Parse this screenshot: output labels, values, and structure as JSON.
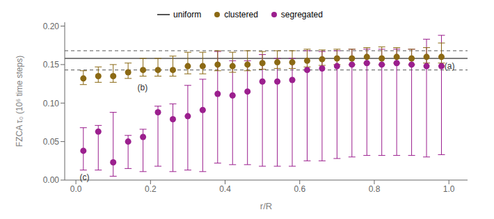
{
  "chart_data": {
    "type": "scatter",
    "xlabel": "r/R",
    "ylabel": "FZCA τ₀ (10⁶ time steps)",
    "xlim": [
      -0.03,
      1.05
    ],
    "ylim": [
      0,
      0.205
    ],
    "xticks": [
      {
        "value": 0,
        "label": "0.0"
      },
      0.2,
      0.4,
      0.6,
      0.8,
      {
        "value": 1.0,
        "label": "1.0"
      }
    ],
    "yticks": [
      {
        "value": 0,
        "label": "0.00"
      },
      0.05,
      {
        "value": 0.1,
        "label": "0.10"
      },
      0.15,
      {
        "value": 0.2,
        "label": "0.20"
      }
    ],
    "grid": false,
    "legend": "top",
    "reference_lines": [
      {
        "name": "uniform",
        "y": 0.158,
        "color": "#555555",
        "line_style": "solid"
      },
      {
        "y": 0.168,
        "color": "#555555",
        "line_style": "dashed"
      },
      {
        "y": 0.143,
        "color": "#555555",
        "line_style": "dashed"
      }
    ],
    "x": [
      0.02,
      0.06,
      0.1,
      0.14,
      0.18,
      0.22,
      0.26,
      0.3,
      0.34,
      0.38,
      0.42,
      0.46,
      0.5,
      0.54,
      0.58,
      0.62,
      0.66,
      0.7,
      0.74,
      0.78,
      0.82,
      0.86,
      0.9,
      0.94,
      0.98
    ],
    "series": [
      {
        "name": "clustered",
        "color": "#8B6914",
        "marker": "circle",
        "values": [
          0.132,
          0.135,
          0.135,
          0.14,
          0.143,
          0.143,
          0.143,
          0.148,
          0.148,
          0.15,
          0.148,
          0.15,
          0.152,
          0.153,
          0.153,
          0.155,
          0.157,
          0.158,
          0.158,
          0.16,
          0.158,
          0.16,
          0.158,
          0.16,
          0.16
        ],
        "yerr_lo": [
          0.008,
          0.008,
          0.008,
          0.008,
          0.008,
          0.008,
          0.008,
          0.01,
          0.01,
          0.008,
          0.008,
          0.008,
          0.008,
          0.008,
          0.008,
          0.008,
          0.008,
          0.008,
          0.008,
          0.008,
          0.008,
          0.008,
          0.008,
          0.008,
          0.008
        ],
        "yerr_hi": [
          0.01,
          0.012,
          0.015,
          0.012,
          0.015,
          0.015,
          0.018,
          0.018,
          0.018,
          0.018,
          0.018,
          0.018,
          0.015,
          0.015,
          0.015,
          0.015,
          0.012,
          0.012,
          0.012,
          0.012,
          0.015,
          0.012,
          0.012,
          0.012,
          0.018
        ]
      },
      {
        "name": "segregated",
        "color": "#9B1F8E",
        "marker": "circle",
        "values": [
          0.038,
          0.063,
          0.023,
          0.05,
          0.056,
          0.088,
          0.079,
          0.083,
          0.091,
          0.112,
          0.11,
          0.115,
          0.128,
          0.128,
          0.13,
          0.143,
          0.145,
          0.148,
          0.15,
          0.152,
          0.15,
          0.152,
          0.15,
          0.148,
          0.148
        ],
        "yerr_lo": [
          0.025,
          0.05,
          0.018,
          0.035,
          0.045,
          0.07,
          0.068,
          0.07,
          0.08,
          0.09,
          0.09,
          0.095,
          0.11,
          0.11,
          0.112,
          0.118,
          0.12,
          0.12,
          0.12,
          0.12,
          0.118,
          0.12,
          0.118,
          0.118,
          0.115
        ],
        "yerr_hi": [
          0.03,
          0.008,
          0.065,
          0.008,
          0.01,
          0.008,
          0.02,
          0.04,
          0.04,
          0.055,
          0.045,
          0.04,
          0.035,
          0.03,
          0.028,
          0.025,
          0.022,
          0.02,
          0.02,
          0.018,
          0.02,
          0.018,
          0.02,
          0.035,
          0.04
        ]
      }
    ],
    "annotations": [
      {
        "text": "(a)",
        "x": 0.988,
        "y": 0.148
      },
      {
        "text": "(b)",
        "x": 0.165,
        "y": 0.12
      },
      {
        "text": "(c)",
        "x": 0.01,
        "y": 0.004
      }
    ]
  }
}
